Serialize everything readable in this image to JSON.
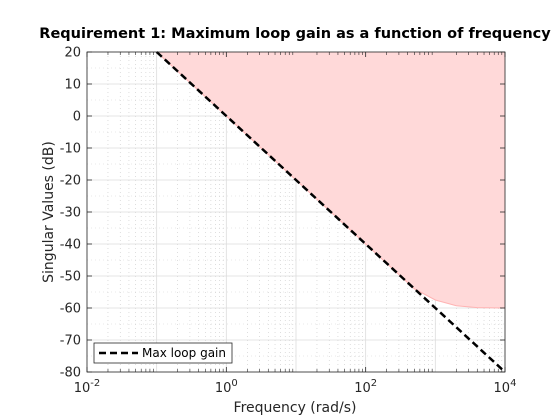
{
  "chart_data": {
    "type": "line",
    "title": "Requirement 1: Maximum loop gain as a function of frequency",
    "xlabel": "Frequency (rad/s)",
    "ylabel": "Singular Values (dB)",
    "xscale": "log",
    "xlim": [
      0.01,
      10000
    ],
    "ylim": [
      -80,
      20
    ],
    "x_ticks": [
      {
        "value": 0.01,
        "base": "10",
        "exp": "-2"
      },
      {
        "value": 1,
        "base": "10",
        "exp": "0"
      },
      {
        "value": 100,
        "base": "10",
        "exp": "2"
      },
      {
        "value": 10000,
        "base": "10",
        "exp": "4"
      }
    ],
    "y_ticks": [
      20,
      10,
      0,
      -10,
      -20,
      -30,
      -40,
      -50,
      -60,
      -70,
      -80
    ],
    "grid": true,
    "minor_grid": true,
    "legend": "bottom-left",
    "series": [
      {
        "name": "Max loop gain",
        "style": "dashed",
        "color": "#000000",
        "x": [
          0.1,
          1,
          10,
          100,
          1000,
          10000
        ],
        "y": [
          20,
          0,
          -20,
          -40,
          -60,
          -80
        ]
      }
    ],
    "shaded_region": {
      "color": "#ffd9d9",
      "edge_color": "#ffb3b3",
      "lower_boundary": {
        "x": [
          0.1,
          1,
          10,
          100,
          500,
          1000,
          2000,
          4000,
          10000
        ],
        "y": [
          20,
          0,
          -20,
          -40,
          -54,
          -57.5,
          -59.3,
          -59.9,
          -60
        ]
      }
    }
  }
}
